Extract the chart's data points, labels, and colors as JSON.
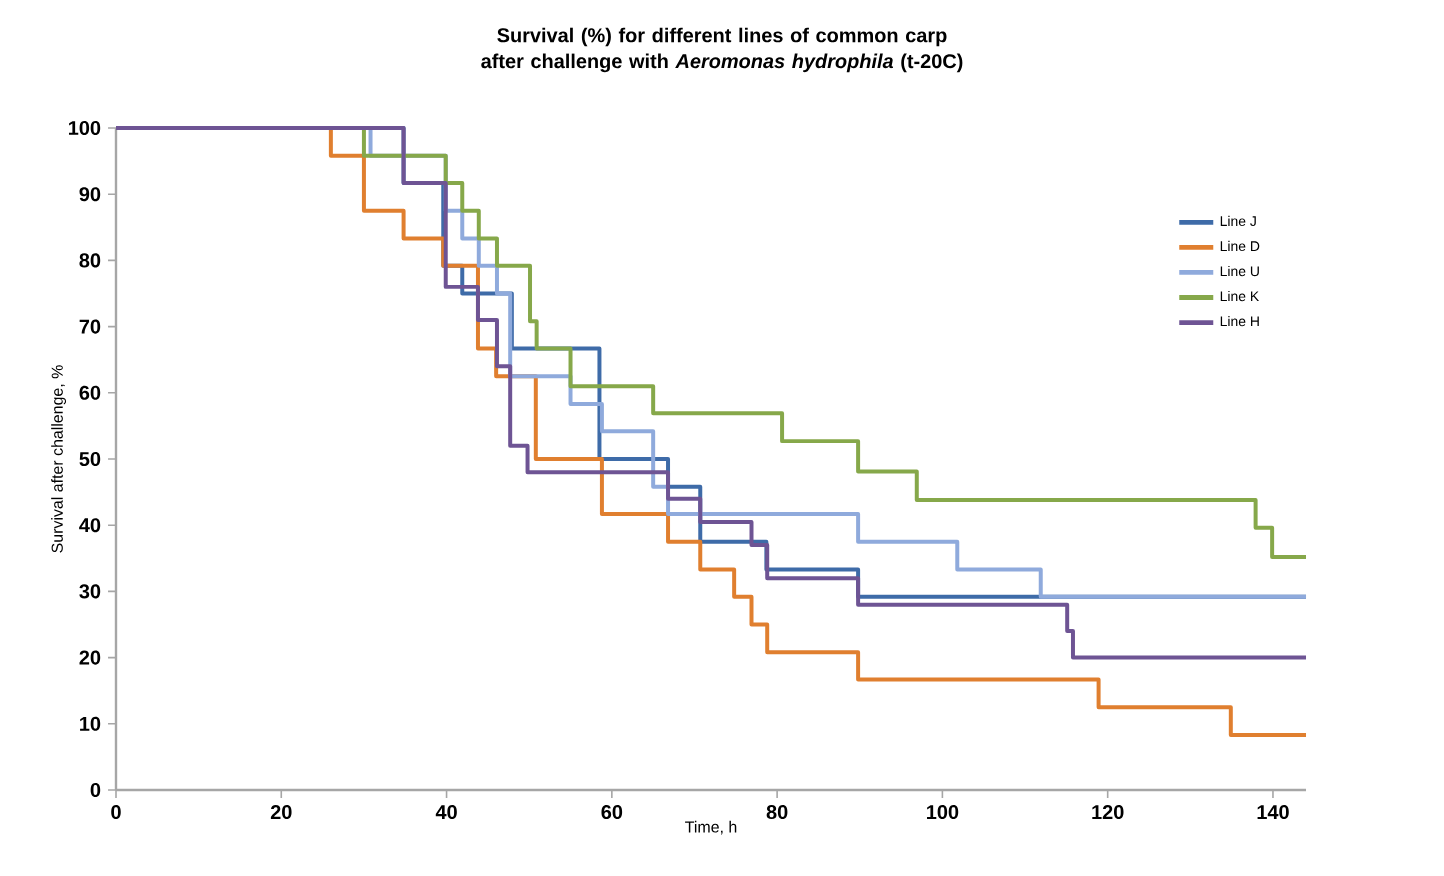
{
  "chart_data": {
    "type": "step",
    "title": "Survival (%) for different lines of common carp after challenge with *Aeromonas hydrophila* (t-20C)",
    "xlabel": "Time, h",
    "ylabel": "Survival after challenge, %",
    "xlim": [
      0,
      144
    ],
    "ylim": [
      0,
      100
    ],
    "xticks": [
      0,
      20,
      40,
      60,
      80,
      100,
      120,
      140
    ],
    "yticks": [
      0,
      10,
      20,
      30,
      40,
      50,
      60,
      70,
      80,
      90,
      100
    ],
    "legend": "right",
    "line_style": "solid",
    "marker": "none",
    "series": [
      {
        "name": "Line J",
        "color": "#3e6ba8",
        "x": [
          0,
          34.8,
          39.6,
          41.9,
          47.9,
          58.5,
          66.8,
          70.7,
          78.7,
          89.8,
          144
        ],
        "values": [
          100,
          91.7,
          79.2,
          75,
          66.7,
          50,
          45.8,
          37.5,
          33.3,
          29.2,
          29.2
        ]
      },
      {
        "name": "Line D",
        "color": "#e07f2f",
        "x": [
          0,
          26,
          30,
          34.8,
          39.6,
          43.8,
          46,
          50.8,
          58.8,
          66.8,
          70.7,
          74.8,
          76.9,
          78.8,
          89.8,
          118.9,
          134.9,
          144
        ],
        "values": [
          100,
          95.8,
          87.5,
          83.3,
          79.2,
          66.7,
          62.5,
          50,
          41.7,
          37.5,
          33.3,
          29.2,
          25,
          20.8,
          16.7,
          12.5,
          8.3,
          8.3
        ]
      },
      {
        "name": "Line U",
        "color": "#8faadc",
        "x": [
          0,
          30.8,
          39.9,
          41.9,
          43.9,
          46.1,
          47.7,
          55,
          58.8,
          65,
          66.8,
          89.8,
          101.8,
          111.9,
          144
        ],
        "values": [
          100,
          95.8,
          87.5,
          83.3,
          79.2,
          75,
          62.5,
          58.3,
          54.2,
          45.8,
          41.7,
          37.5,
          33.3,
          29.2,
          29.2
        ]
      },
      {
        "name": "Line K",
        "color": "#86a84a",
        "x": [
          0,
          30,
          39.9,
          41.9,
          43.9,
          46.1,
          50.1,
          50.9,
          55,
          65,
          80.6,
          89.8,
          96.9,
          137.9,
          139.9,
          144
        ],
        "values": [
          100,
          95.8,
          91.7,
          87.5,
          83.3,
          79.2,
          70.8,
          66.7,
          61,
          56.9,
          52.7,
          48.1,
          43.8,
          39.6,
          35.2,
          35.2
        ]
      },
      {
        "name": "Line H",
        "color": "#6e5494",
        "x": [
          0,
          34.8,
          39.9,
          43.8,
          46.1,
          47.7,
          49.8,
          66.8,
          70.7,
          76.9,
          78.8,
          89.8,
          115.1,
          115.8,
          144
        ],
        "values": [
          100,
          91.7,
          76,
          71,
          64,
          52,
          48,
          44,
          40.5,
          37,
          32,
          28,
          24,
          20,
          20
        ]
      }
    ]
  }
}
